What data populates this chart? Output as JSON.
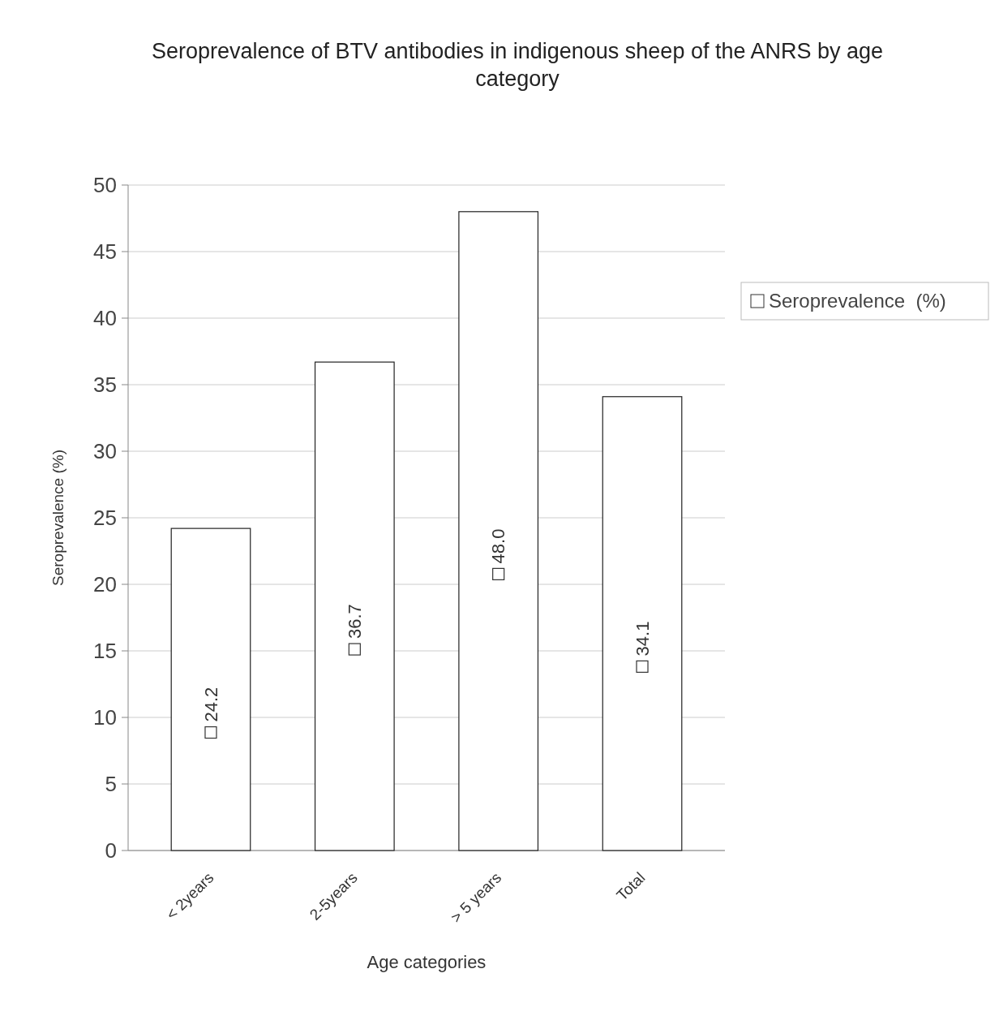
{
  "chart_data": {
    "type": "bar",
    "title": "Seroprevalence of BTV antibodies in indigenous sheep of the ANRS by age category",
    "xlabel": "Age categories",
    "ylabel": "Seroprevalence (%)",
    "categories": [
      "< 2years",
      "2-5years",
      "> 5 years",
      "Total"
    ],
    "series": [
      {
        "name": "Seroprevalence  (%)",
        "color": "#ffffff",
        "values": [
          24.2,
          36.7,
          48.0,
          34.1
        ],
        "value_labels": [
          "24.2",
          "36.7",
          "48.0",
          "34.1"
        ]
      }
    ],
    "ylim": [
      0,
      50
    ],
    "yticks": [
      0,
      5,
      10,
      15,
      20,
      25,
      30,
      35,
      40,
      45,
      50
    ],
    "grid": "y",
    "legend": "right"
  }
}
